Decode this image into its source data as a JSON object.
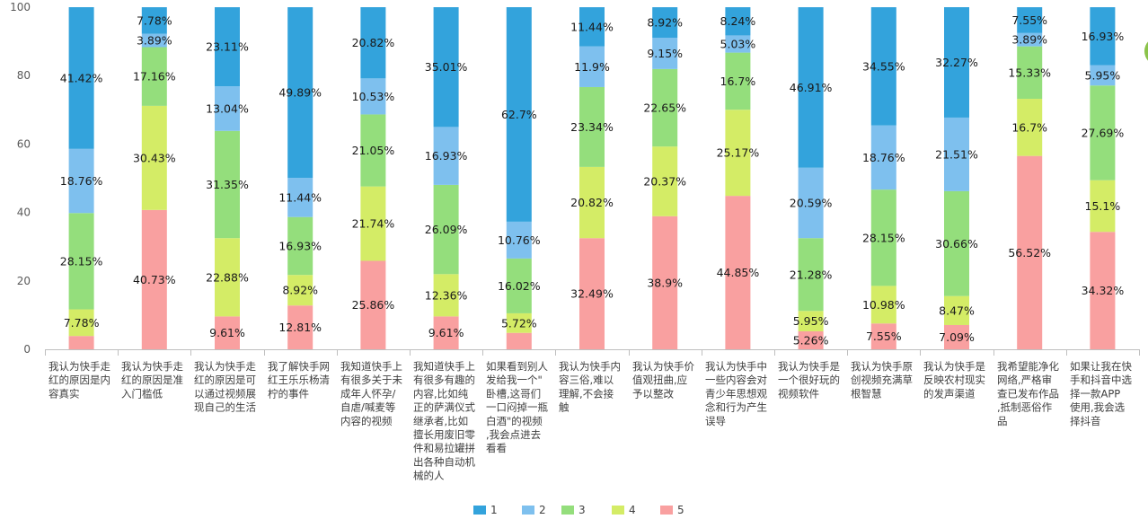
{
  "chart_data": {
    "type": "bar",
    "stacked": true,
    "ylim": [
      0,
      100
    ],
    "yticks": [
      0,
      20,
      40,
      60,
      80,
      100
    ],
    "grid": false,
    "legend_position": "bottom",
    "categories": [
      [
        "我认为快手走",
        "红的原因是内",
        "容真实"
      ],
      [
        "我认为快手走",
        "红的原因是准",
        "入门槛低"
      ],
      [
        "我认为快手走",
        "红的原因是可",
        "以通过视频展",
        "现自己的生活"
      ],
      [
        "我了解快手网",
        "红王乐乐杨清",
        "柠的事件"
      ],
      [
        "我知道快手上",
        "有很多关于未",
        "成年人怀孕/",
        "自虐/喊麦等",
        "内容的视频"
      ],
      [
        "我知道快手上",
        "有很多有趣的",
        "内容,比如纯",
        "正的萨满仪式",
        "继承者,比如",
        "擅长用废旧零",
        "件和易拉罐拼",
        "出各种自动机",
        "械的人"
      ],
      [
        "如果看到别人",
        "发给我一个\"",
        "卧槽,这哥们",
        "一口闷掉一瓶",
        "白酒\"的视频",
        ",我会点进去",
        "看看"
      ],
      [
        "我认为快手内",
        "容三俗,难以",
        "理解,不会接",
        "触"
      ],
      [
        "我认为快手价",
        "值观扭曲,应",
        "予以整改"
      ],
      [
        "我认为快手中",
        "一些内容会对",
        "青少年思想观",
        "念和行为产生",
        "误导"
      ],
      [
        "我认为快手是",
        "一个很好玩的",
        "视频软件"
      ],
      [
        "我认为快手原",
        "创视频充满草",
        "根智慧"
      ],
      [
        "我认为快手是",
        "反映农村现实",
        "的发声渠道"
      ],
      [
        "我希望能净化",
        "网络,严格审",
        "查已发布作品",
        ",抵制恶俗作",
        "品"
      ],
      [
        "如果让我在快",
        "手和抖音中选",
        "择一款APP",
        "使用,我会选",
        "择抖音"
      ]
    ],
    "series": [
      {
        "name": "1",
        "color": "#33A3DC",
        "values": [
          41.42,
          7.78,
          23.11,
          49.89,
          20.82,
          35.01,
          62.7,
          11.44,
          8.92,
          8.24,
          46.91,
          34.55,
          32.27,
          7.55,
          16.93
        ]
      },
      {
        "name": "2",
        "color": "#7EC0EE",
        "values": [
          18.76,
          3.89,
          13.04,
          11.44,
          10.53,
          16.93,
          10.76,
          11.9,
          9.15,
          5.03,
          20.59,
          18.76,
          21.51,
          3.89,
          5.95
        ]
      },
      {
        "name": "3",
        "color": "#94DE7C",
        "values": [
          28.15,
          17.16,
          31.35,
          16.93,
          21.05,
          26.09,
          16.02,
          23.34,
          22.65,
          16.7,
          21.28,
          28.15,
          30.66,
          15.33,
          27.69
        ]
      },
      {
        "name": "4",
        "color": "#D4EC66",
        "values": [
          7.78,
          30.43,
          22.88,
          8.92,
          21.74,
          12.36,
          5.72,
          20.82,
          20.37,
          25.17,
          5.95,
          10.98,
          8.47,
          16.7,
          15.1
        ]
      },
      {
        "name": "5",
        "color": "#F9A0A0",
        "values": [
          3.89,
          40.73,
          9.61,
          12.81,
          25.86,
          9.61,
          4.8,
          32.49,
          38.9,
          44.85,
          5.26,
          7.55,
          7.09,
          56.52,
          34.32
        ]
      }
    ],
    "data_labels": [
      [
        "41.42%",
        "7.78%",
        "23.11%",
        "49.89%",
        "20.82%",
        "35.01%",
        "62.7%",
        "11.44%",
        "8.92%",
        "8.24%",
        "46.91%",
        "34.55%",
        "32.27%",
        "7.55%",
        "16.93%"
      ],
      [
        "18.76%",
        "3.89%",
        "13.04%",
        "11.44%",
        "10.53%",
        "16.93%",
        "10.76%",
        "11.9%",
        "9.15%",
        "5.03%",
        "20.59%",
        "18.76%",
        "21.51%",
        "3.89%",
        "5.95%"
      ],
      [
        "28.15%",
        "17.16%",
        "31.35%",
        "16.93%",
        "21.05%",
        "26.09%",
        "16.02%",
        "23.34%",
        "22.65%",
        "16.7%",
        "21.28%",
        "28.15%",
        "30.66%",
        "15.33%",
        "27.69%"
      ],
      [
        "7.78%",
        "30.43%",
        "22.88%",
        "8.92%",
        "21.74%",
        "12.36%",
        "5.72%",
        "20.82%",
        "20.37%",
        "25.17%",
        "5.95%",
        "10.98%",
        "8.47%",
        "16.7%",
        "15.1%"
      ],
      [
        "",
        "40.73%",
        "9.61%",
        "12.81%",
        "25.86%",
        "9.61%",
        "",
        "32.49%",
        "38.9%",
        "44.85%",
        "5.26%",
        "7.55%",
        "7.09%",
        "56.52%",
        "34.32%"
      ]
    ]
  }
}
